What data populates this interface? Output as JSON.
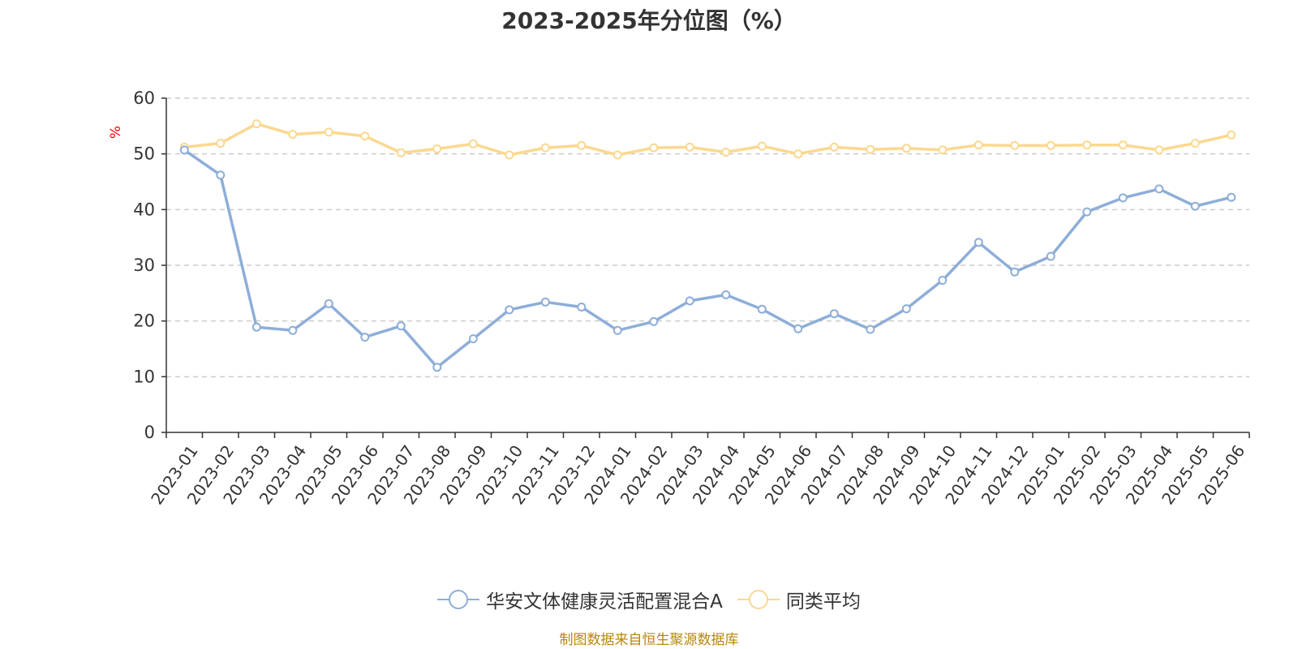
{
  "chart_data": {
    "type": "line",
    "title": "2023-2025年分位图（%）",
    "ylabel": "%",
    "ylim": [
      0,
      60
    ],
    "yticks": [
      0,
      10,
      20,
      30,
      40,
      50,
      60
    ],
    "grid": true,
    "legend_position": "bottom",
    "x": [
      "2023-01",
      "2023-02",
      "2023-03",
      "2023-04",
      "2023-05",
      "2023-06",
      "2023-07",
      "2023-08",
      "2023-09",
      "2023-10",
      "2023-11",
      "2023-12",
      "2024-01",
      "2024-02",
      "2024-03",
      "2024-04",
      "2024-05",
      "2024-06",
      "2024-07",
      "2024-08",
      "2024-09",
      "2024-10",
      "2024-11",
      "2024-12",
      "2025-01",
      "2025-02",
      "2025-03",
      "2025-04",
      "2025-05",
      "2025-06"
    ],
    "series": [
      {
        "name": "华安文体健康灵活配置混合A",
        "color": "#8eaed8",
        "values": [
          50.7,
          46.2,
          18.9,
          18.3,
          23.1,
          17.1,
          19.1,
          11.7,
          16.8,
          22.0,
          23.4,
          22.5,
          18.3,
          19.9,
          23.6,
          24.7,
          22.1,
          18.6,
          21.3,
          18.5,
          22.2,
          27.3,
          34.1,
          28.8,
          31.6,
          39.6,
          42.1,
          43.7,
          40.6,
          42.2
        ]
      },
      {
        "name": "同类平均",
        "color": "#fbd88f",
        "values": [
          51.2,
          51.9,
          55.4,
          53.5,
          53.9,
          53.2,
          50.2,
          50.9,
          51.8,
          49.8,
          51.1,
          51.5,
          49.8,
          51.1,
          51.2,
          50.3,
          51.4,
          50.0,
          51.2,
          50.8,
          51.0,
          50.7,
          51.6,
          51.5,
          51.5,
          51.6,
          51.6,
          50.7,
          51.9,
          53.4
        ]
      }
    ]
  },
  "source_note": "制图数据来自恒生聚源数据库"
}
